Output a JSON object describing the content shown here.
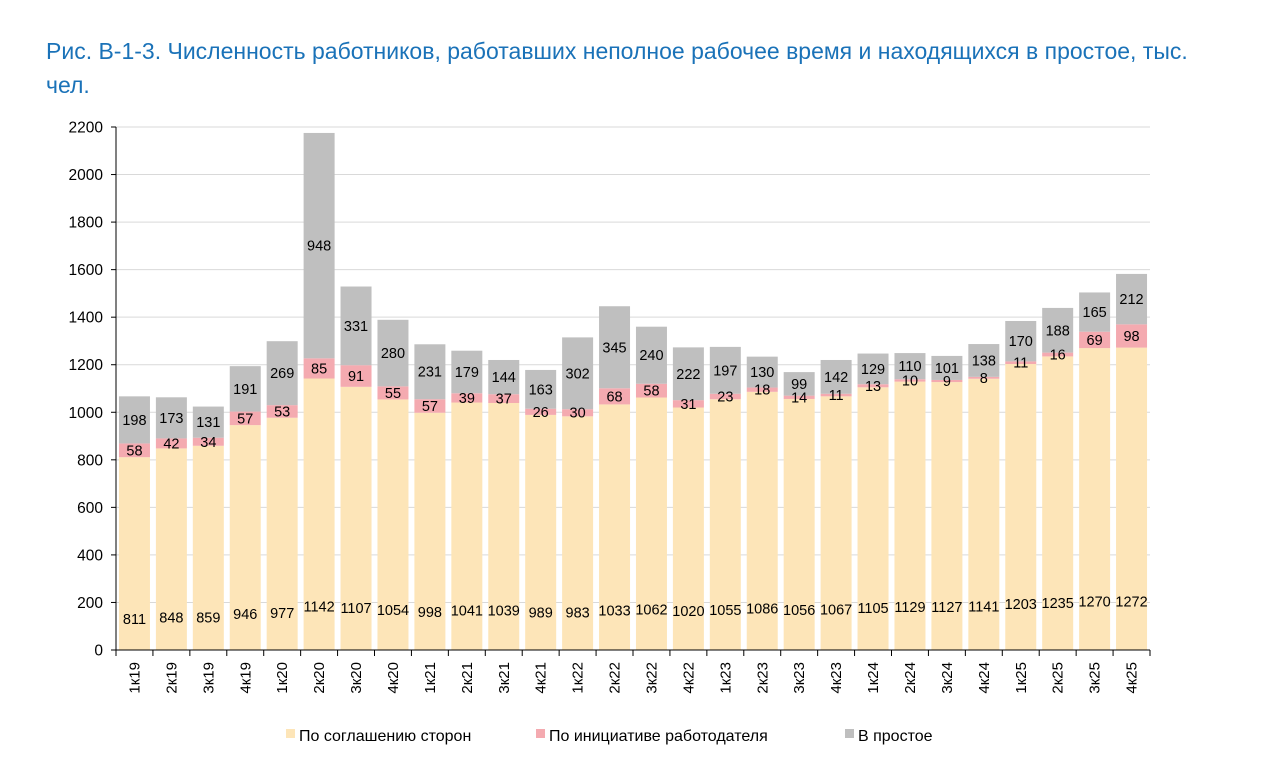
{
  "chart_data": {
    "type": "bar",
    "stacked": true,
    "title": "Рис. В-1-3. Численность работников, работавших неполное рабочее время и находящихся в простое, тыс. чел.",
    "categories": [
      "1к19",
      "2к19",
      "3к19",
      "4к19",
      "1к20",
      "2к20",
      "3к20",
      "4к20",
      "1к21",
      "2к21",
      "3к21",
      "4к21",
      "1к22",
      "2к22",
      "3к22",
      "4к22",
      "1к23",
      "2к23",
      "3к23",
      "4к23",
      "1к24",
      "2к24",
      "3к24",
      "4к24",
      "1к25",
      "2к25",
      "3к25",
      "4к25"
    ],
    "series": [
      {
        "name": "По соглашению сторон",
        "color": "#fde5b8",
        "values": [
          811,
          848,
          859,
          946,
          977,
          1142,
          1107,
          1054,
          998,
          1041,
          1039,
          989,
          983,
          1033,
          1062,
          1020,
          1055,
          1086,
          1056,
          1067,
          1105,
          1129,
          1127,
          1141,
          1203,
          1235,
          1270,
          1272
        ]
      },
      {
        "name": "По инициативе работодателя",
        "color": "#f4aab0",
        "values": [
          58,
          42,
          34,
          57,
          53,
          85,
          91,
          55,
          57,
          39,
          37,
          26,
          30,
          68,
          58,
          31,
          23,
          18,
          14,
          11,
          13,
          10,
          9,
          8,
          11,
          16,
          69,
          98
        ]
      },
      {
        "name": "В простое",
        "color": "#bfbfbf",
        "values": [
          198,
          173,
          131,
          191,
          269,
          948,
          331,
          280,
          231,
          179,
          144,
          163,
          302,
          345,
          240,
          222,
          197,
          130,
          99,
          142,
          129,
          110,
          101,
          138,
          170,
          188,
          165,
          212
        ]
      }
    ],
    "ylim": [
      0,
      2200
    ],
    "yticks": [
      "0",
      "200",
      "400",
      "600",
      "800",
      "1000",
      "1200",
      "1400",
      "1600",
      "1800",
      "2000",
      "2200"
    ],
    "grid": true,
    "legend": "bottom"
  }
}
